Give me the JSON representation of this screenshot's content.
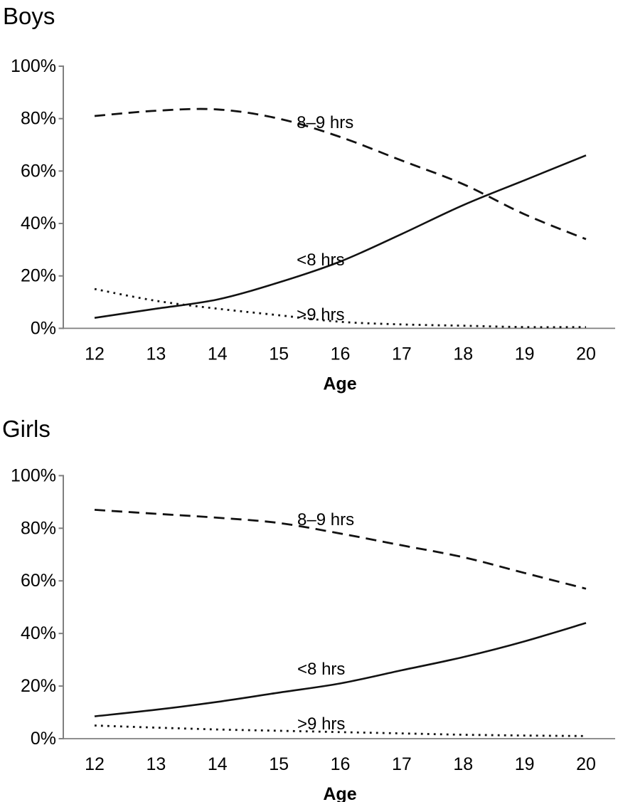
{
  "page": {
    "background": "#ffffff"
  },
  "colors": {
    "series_line": "#121212",
    "axis_line": "#7f7f7f",
    "text": "#000000"
  },
  "chart_data": [
    {
      "type": "line",
      "title": "Boys",
      "xlabel": "Age",
      "ylabel": "",
      "x": [
        12,
        13,
        14,
        15,
        16,
        17,
        18,
        19,
        20
      ],
      "xlim": [
        12,
        20
      ],
      "ylim": [
        0,
        100
      ],
      "ytick_values": [
        0,
        20,
        40,
        60,
        80,
        100
      ],
      "ytick_suffix": "%",
      "grid": false,
      "legend": "inline-annotations",
      "series": [
        {
          "name": "8-9-hrs",
          "label": "8–9 hrs",
          "line_style": "dashed",
          "values": [
            81,
            83,
            83.5,
            80,
            73,
            64,
            55,
            43.5,
            34
          ]
        },
        {
          "name": "lt-8-hrs",
          "label": "<8 hrs",
          "line_style": "solid",
          "values": [
            4,
            7.5,
            11,
            17.5,
            25.5,
            36,
            47,
            56.5,
            66
          ]
        },
        {
          "name": "gt-9-hrs",
          "label": ">9 hrs",
          "line_style": "dotted",
          "values": [
            15,
            10.5,
            7.5,
            5,
            2.5,
            1.5,
            1,
            0.5,
            0.5
          ]
        }
      ],
      "annotations": [
        {
          "text": "8–9 hrs",
          "x": 15.29,
          "y": 76.4
        },
        {
          "text": "<8 hrs",
          "x": 15.29,
          "y": 24.0
        },
        {
          "text": ">9 hrs",
          "x": 15.29,
          "y": 3.1
        }
      ]
    },
    {
      "type": "line",
      "title": "Girls",
      "xlabel": "Age",
      "ylabel": "",
      "x": [
        12,
        13,
        14,
        15,
        16,
        17,
        18,
        19,
        20
      ],
      "xlim": [
        12,
        20
      ],
      "ylim": [
        0,
        100
      ],
      "ytick_values": [
        0,
        20,
        40,
        60,
        80,
        100
      ],
      "ytick_suffix": "%",
      "grid": false,
      "legend": "inline-annotations",
      "series": [
        {
          "name": "8-9-hrs",
          "label": "8–9 hrs",
          "line_style": "dashed",
          "values": [
            87,
            85.5,
            84,
            82,
            78,
            73.5,
            69,
            63,
            57
          ]
        },
        {
          "name": "lt-8-hrs",
          "label": "<8 hrs",
          "line_style": "solid",
          "values": [
            8.5,
            11,
            14,
            17.5,
            21,
            26,
            31,
            37,
            44
          ]
        },
        {
          "name": "gt-9-hrs",
          "label": ">9 hrs",
          "line_style": "dotted",
          "values": [
            5,
            4.2,
            3.5,
            3,
            2.5,
            2,
            1.5,
            1.2,
            1
          ]
        }
      ],
      "annotations": [
        {
          "text": "8–9 hrs",
          "x": 15.3,
          "y": 81.2
        },
        {
          "text": "<8 hrs",
          "x": 15.3,
          "y": 24.35
        },
        {
          "text": ">9 hrs",
          "x": 15.3,
          "y": 3.5
        }
      ]
    }
  ]
}
